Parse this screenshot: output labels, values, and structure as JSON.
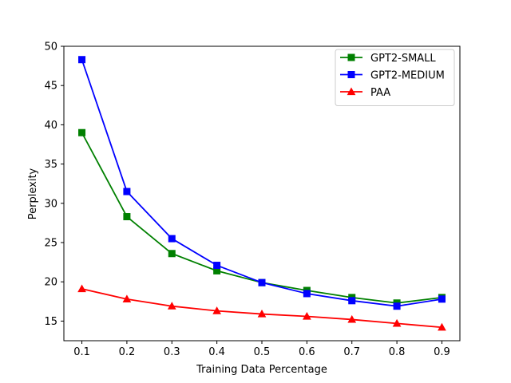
{
  "chart_data": {
    "type": "line",
    "title": "",
    "xlabel": "Training Data Percentage",
    "ylabel": "Perplexity",
    "x": [
      0.1,
      0.2,
      0.3,
      0.4,
      0.5,
      0.6,
      0.7,
      0.8,
      0.9
    ],
    "x_ticks": [
      "0.1",
      "0.2",
      "0.3",
      "0.4",
      "0.5",
      "0.6",
      "0.7",
      "0.8",
      "0.9"
    ],
    "y_ticks": [
      "15",
      "20",
      "25",
      "30",
      "35",
      "40",
      "45",
      "50"
    ],
    "xlim": [
      0.06,
      0.94
    ],
    "ylim": [
      12.5,
      50
    ],
    "grid": false,
    "legend_position": "top-right",
    "series": [
      {
        "name": "GPT2-SMALL",
        "color": "#008000",
        "marker": "square",
        "values": [
          39.0,
          28.3,
          23.6,
          21.4,
          19.9,
          18.9,
          18.0,
          17.3,
          18.0
        ]
      },
      {
        "name": "GPT2-MEDIUM",
        "color": "#0000ff",
        "marker": "square",
        "values": [
          48.3,
          31.5,
          25.5,
          22.1,
          19.9,
          18.5,
          17.6,
          16.9,
          17.8
        ]
      },
      {
        "name": "PAA",
        "color": "#ff0000",
        "marker": "triangle",
        "values": [
          19.1,
          17.8,
          16.9,
          16.3,
          15.9,
          15.6,
          15.2,
          14.7,
          14.2
        ]
      }
    ]
  }
}
